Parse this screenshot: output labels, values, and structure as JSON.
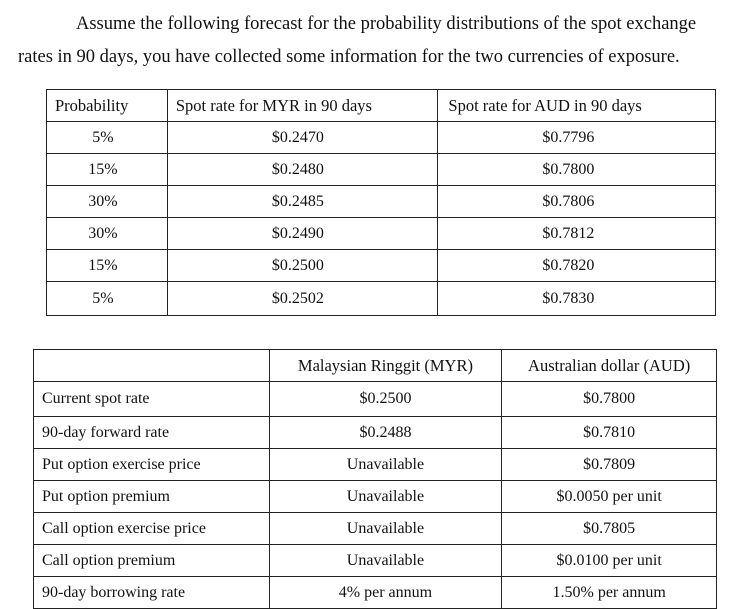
{
  "intro": {
    "text": "Assume the following forecast for the probability distributions of the spot exchange rates in 90 days, you have collected some information for the two currencies of exposure."
  },
  "forecast_table": {
    "headers": [
      "Probability",
      "Spot rate for MYR in 90 days",
      "Spot rate for AUD in 90 days"
    ],
    "rows": [
      [
        "5%",
        "$0.2470",
        "$0.7796"
      ],
      [
        "15%",
        "$0.2480",
        "$0.7800"
      ],
      [
        "30%",
        "$0.2485",
        "$0.7806"
      ],
      [
        "30%",
        "$0.2490",
        "$0.7812"
      ],
      [
        "15%",
        "$0.2500",
        "$0.7820"
      ],
      [
        "5%",
        "$0.2502",
        "$0.7830"
      ]
    ]
  },
  "info_table": {
    "headers": [
      "",
      "Malaysian Ringgit (MYR)",
      "Australian dollar (AUD)"
    ],
    "rows": [
      [
        "Current spot rate",
        "$0.2500",
        "$0.7800"
      ],
      [
        "90-day forward rate",
        "$0.2488",
        "$0.7810"
      ],
      [
        "Put option exercise price",
        "Unavailable",
        "$0.7809"
      ],
      [
        "Put option premium",
        "Unavailable",
        "$0.0050 per unit"
      ],
      [
        "Call option exercise price",
        "Unavailable",
        "$0.7805"
      ],
      [
        "Call option premium",
        "Unavailable",
        "$0.0100 per unit"
      ],
      [
        "90-day borrowing rate",
        "4% per annum",
        "1.50% per annum"
      ]
    ]
  }
}
